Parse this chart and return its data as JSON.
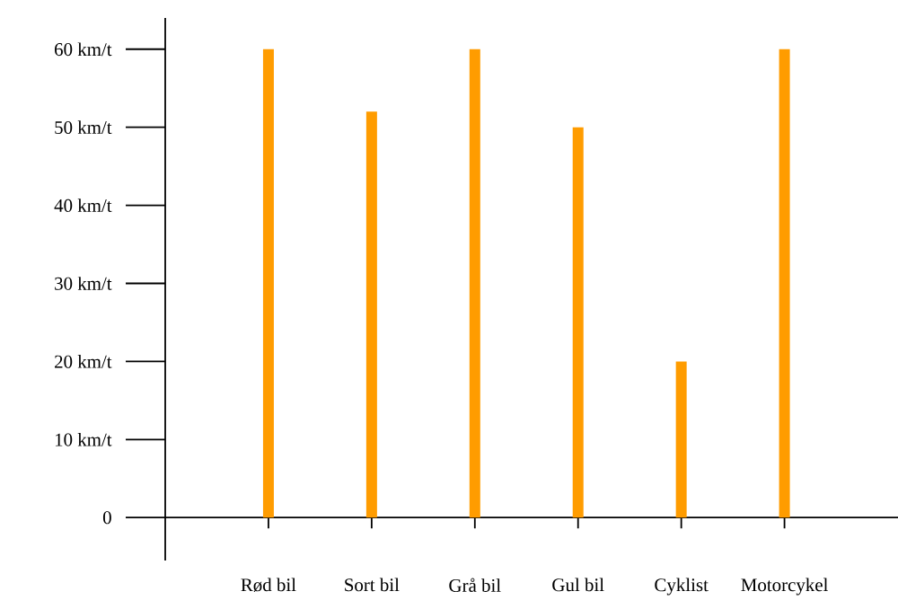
{
  "chart_data": {
    "type": "bar",
    "categories": [
      "Rød bil",
      "Sort bil",
      "Grå bil",
      "Gul bil",
      "Cyklist",
      "Motorcykel"
    ],
    "values": [
      60,
      52,
      60,
      50,
      20,
      60
    ],
    "color": "#ff9c00",
    "ylim": [
      -5.5,
      64
    ],
    "yticks": [
      0,
      {
        "value": 10,
        "label": "10 km/t"
      },
      {
        "value": 20,
        "label": "20 km/t"
      },
      {
        "value": 30,
        "label": "30 km/t"
      },
      {
        "value": 40,
        "label": "40 km/t"
      },
      {
        "value": 50,
        "label": "50 km/t"
      },
      {
        "value": 60,
        "label": "60 km/t"
      }
    ]
  }
}
